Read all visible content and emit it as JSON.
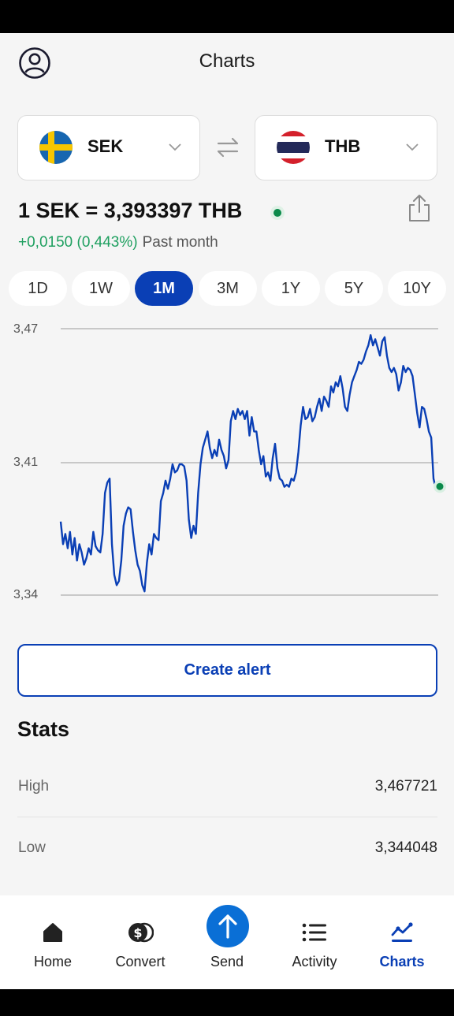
{
  "header": {
    "title": "Charts"
  },
  "pair": {
    "from": {
      "code": "SEK",
      "flag_icon": "sweden-flag-icon"
    },
    "to": {
      "code": "THB",
      "flag_icon": "thailand-flag-icon"
    }
  },
  "rate": {
    "text": "1 SEK = 3,393397 THB",
    "change": "+0,0150 (0,443%)",
    "period": "Past month"
  },
  "ranges": [
    "1D",
    "1W",
    "1M",
    "3M",
    "1Y",
    "5Y",
    "10Y"
  ],
  "active_range": "1M",
  "chart_data": {
    "type": "line",
    "title": "",
    "xlabel": "",
    "ylabel": "",
    "yticks": [
      "3,47",
      "3,41",
      "3,34"
    ],
    "ylim": [
      3.34,
      3.47
    ],
    "series": [
      {
        "values": [
          3.377,
          3.366,
          3.371,
          3.364,
          3.372,
          3.361,
          3.369,
          3.358,
          3.366,
          3.362,
          3.356,
          3.359,
          3.364,
          3.361,
          3.372,
          3.365,
          3.363,
          3.362,
          3.371,
          3.391,
          3.396,
          3.398,
          3.366,
          3.351,
          3.346,
          3.348,
          3.358,
          3.375,
          3.381,
          3.384,
          3.383,
          3.372,
          3.363,
          3.356,
          3.353,
          3.346,
          3.343,
          3.357,
          3.366,
          3.361,
          3.371,
          3.369,
          3.368,
          3.387,
          3.391,
          3.397,
          3.393,
          3.398,
          3.405,
          3.401,
          3.402,
          3.405,
          3.405,
          3.404,
          3.397,
          3.378,
          3.369,
          3.375,
          3.371,
          3.391,
          3.405,
          3.413,
          3.417,
          3.421,
          3.413,
          3.408,
          3.412,
          3.409,
          3.417,
          3.412,
          3.409,
          3.403,
          3.407,
          3.426,
          3.431,
          3.427,
          3.432,
          3.429,
          3.431,
          3.427,
          3.431,
          3.419,
          3.428,
          3.421,
          3.421,
          3.412,
          3.405,
          3.409,
          3.399,
          3.401,
          3.397,
          3.408,
          3.415,
          3.403,
          3.398,
          3.397,
          3.394,
          3.395,
          3.394,
          3.398,
          3.397,
          3.401,
          3.411,
          3.424,
          3.433,
          3.427,
          3.428,
          3.432,
          3.426,
          3.428,
          3.433,
          3.437,
          3.431,
          3.438,
          3.436,
          3.433,
          3.443,
          3.44,
          3.445,
          3.443,
          3.448,
          3.442,
          3.433,
          3.431,
          3.439,
          3.445,
          3.448,
          3.451,
          3.455,
          3.454,
          3.456,
          3.46,
          3.463,
          3.468,
          3.463,
          3.466,
          3.462,
          3.458,
          3.465,
          3.467,
          3.458,
          3.452,
          3.45,
          3.452,
          3.449,
          3.441,
          3.445,
          3.453,
          3.45,
          3.452,
          3.451,
          3.448,
          3.439,
          3.43,
          3.423,
          3.433,
          3.432,
          3.427,
          3.421,
          3.418,
          3.398,
          3.393
        ]
      }
    ],
    "grid": true
  },
  "actions": {
    "create_alert": "Create alert"
  },
  "stats": {
    "title": "Stats",
    "high_label": "High",
    "high_value": "3,467721",
    "low_label": "Low",
    "low_value": "3,344048"
  },
  "nav": {
    "home": "Home",
    "convert": "Convert",
    "send": "Send",
    "activity": "Activity",
    "charts": "Charts"
  }
}
